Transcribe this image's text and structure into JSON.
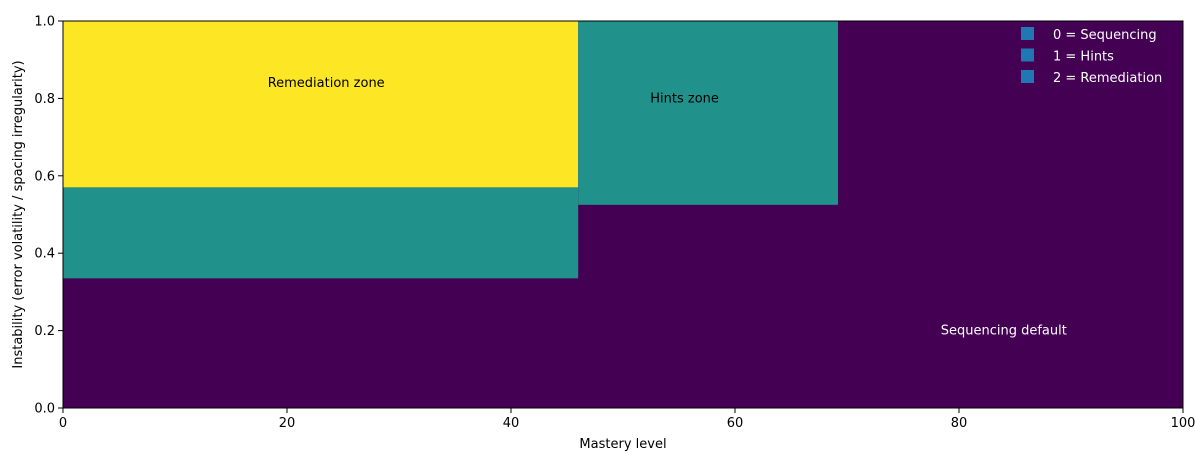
{
  "chart_data": {
    "type": "heatmap",
    "title": "",
    "xlabel": "Mastery level",
    "ylabel": "Instability (error volatility / spacing irregularity)",
    "xlim": [
      0,
      100
    ],
    "ylim": [
      0,
      1
    ],
    "x_ticks": [
      0,
      20,
      40,
      60,
      80,
      100
    ],
    "y_ticks": [
      0.0,
      0.2,
      0.4,
      0.6,
      0.8,
      1.0
    ],
    "x_tick_labels": [
      "0",
      "20",
      "40",
      "60",
      "80",
      "100"
    ],
    "y_tick_labels": [
      "0.0",
      "0.2",
      "0.4",
      "0.6",
      "0.8",
      "1.0"
    ],
    "grid": false,
    "background_value": 0,
    "class_colors": {
      "0": "#440154",
      "1": "#21918c",
      "2": "#fde725"
    },
    "regions": [
      {
        "class": 2,
        "x0": 0,
        "x1": 46,
        "y0": 0.57,
        "y1": 1.0
      },
      {
        "class": 1,
        "x0": 0,
        "x1": 46,
        "y0": 0.335,
        "y1": 0.57
      },
      {
        "class": 1,
        "x0": 46,
        "x1": 69.2,
        "y0": 0.525,
        "y1": 1.0
      }
    ],
    "annotations": [
      {
        "text": "Remediation zone",
        "x": 23.5,
        "y": 0.83,
        "color": "#000000"
      },
      {
        "text": "Hints zone",
        "x": 55.5,
        "y": 0.79,
        "color": "#000000"
      },
      {
        "text": "Sequencing default",
        "x": 84,
        "y": 0.19,
        "color": "#ffffff"
      }
    ],
    "legend": {
      "position": "top-right",
      "marker_color": "#1f77b4",
      "entries": [
        "0 = Sequencing",
        "1 = Hints",
        "2 = Remediation"
      ]
    }
  }
}
